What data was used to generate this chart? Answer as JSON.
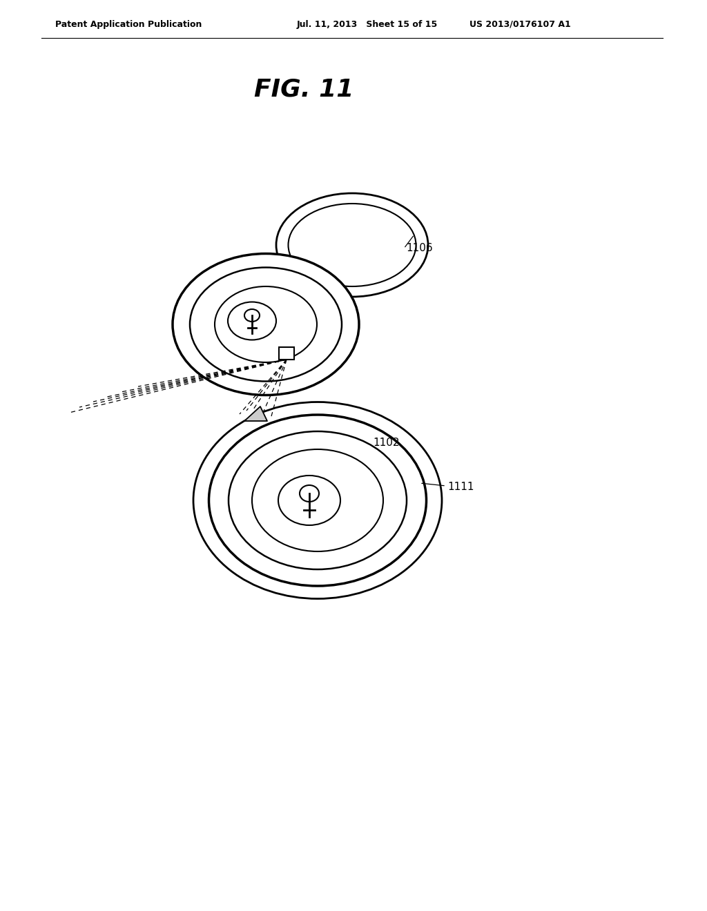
{
  "title": "FIG. 11",
  "header_left": "Patent Application Publication",
  "header_mid": "Jul. 11, 2013   Sheet 15 of 15",
  "header_right": "US 2013/0176107 A1",
  "bg_color": "#ffffff",
  "line_color": "#000000",
  "fig_width": 10.24,
  "fig_height": 13.2,
  "dpi": 100
}
